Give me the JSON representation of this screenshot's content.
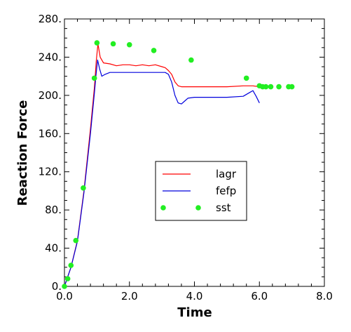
{
  "chart_data": {
    "type": "line",
    "xlabel": "Time",
    "ylabel": "Reaction Force",
    "xlim": [
      0,
      8
    ],
    "ylim": [
      0,
      280
    ],
    "x_ticks": [
      0,
      2,
      4,
      6,
      8
    ],
    "x_tick_labels": [
      "0.0",
      "2.0",
      "4.0",
      "6.0",
      "8.0"
    ],
    "y_ticks": [
      0,
      40,
      80,
      120,
      160,
      200,
      240,
      280
    ],
    "y_tick_labels": [
      "0.",
      "40.",
      "80.",
      "120.",
      "160.",
      "200.",
      "240.",
      "280."
    ],
    "grid": false,
    "legend_position": "center-right",
    "series": [
      {
        "name": "lagr",
        "style": "line",
        "color": "#ff0000",
        "x": [
          0.0,
          0.2,
          0.4,
          0.6,
          0.8,
          0.92,
          0.98,
          1.03,
          1.1,
          1.2,
          1.4,
          1.6,
          1.8,
          2.0,
          2.2,
          2.4,
          2.6,
          2.8,
          3.0,
          3.1,
          3.2,
          3.3,
          3.4,
          3.5,
          3.6,
          3.8,
          4.0,
          4.5,
          5.0,
          5.5,
          5.6,
          5.8,
          6.0
        ],
        "y": [
          0,
          20,
          48,
          100,
          165,
          208,
          236,
          254,
          240,
          234,
          233,
          231,
          232,
          232,
          231,
          232,
          231,
          232,
          230,
          229,
          226,
          222,
          214,
          210,
          209,
          209,
          209,
          209,
          209,
          210,
          210,
          210,
          209
        ]
      },
      {
        "name": "fefp",
        "style": "line",
        "color": "#0000dd",
        "x": [
          0.0,
          0.2,
          0.4,
          0.6,
          0.8,
          0.92,
          0.98,
          1.02,
          1.08,
          1.15,
          1.25,
          1.4,
          1.6,
          1.8,
          2.0,
          2.5,
          3.0,
          3.1,
          3.2,
          3.3,
          3.4,
          3.5,
          3.6,
          3.7,
          3.8,
          4.0,
          4.5,
          5.0,
          5.5,
          5.7,
          5.8,
          5.9,
          6.0
        ],
        "y": [
          0,
          20,
          47,
          98,
          160,
          202,
          224,
          237,
          228,
          220,
          222,
          224,
          224,
          224,
          224,
          224,
          224,
          224,
          222,
          214,
          200,
          192,
          191,
          194,
          197,
          198,
          198,
          198,
          199,
          203,
          205,
          199,
          192
        ]
      },
      {
        "name": "sst",
        "style": "markers",
        "color": "#22ee22",
        "x": [
          0.0,
          0.1,
          0.2,
          0.35,
          0.58,
          0.92,
          1.0,
          1.5,
          2.0,
          2.75,
          3.9,
          5.6,
          6.0,
          6.1,
          6.2,
          6.35,
          6.6,
          6.9,
          7.0
        ],
        "y": [
          0,
          8,
          22,
          48,
          103,
          218,
          255,
          254,
          253,
          247,
          237,
          218,
          210,
          209,
          209,
          209,
          209,
          209,
          209
        ]
      }
    ]
  }
}
